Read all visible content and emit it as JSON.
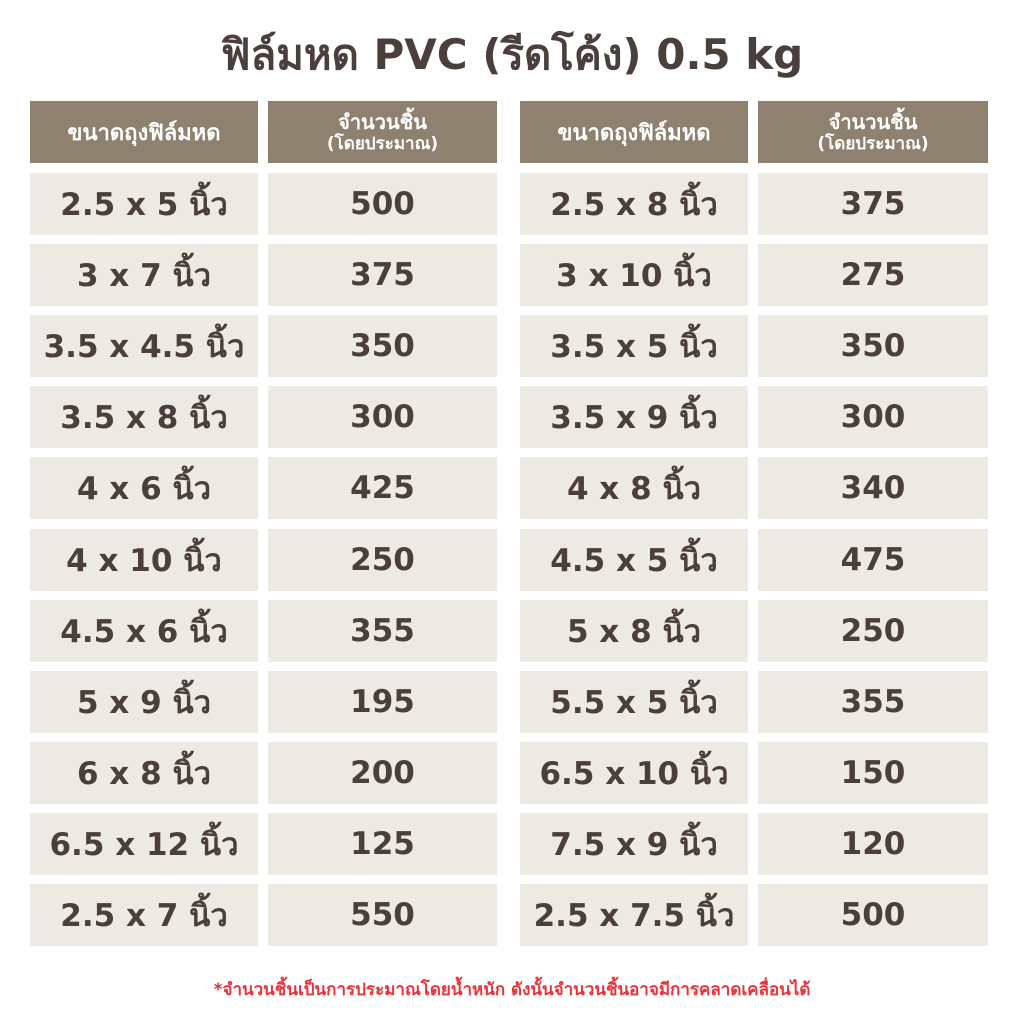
{
  "title": "ฟิล์มหด PVC (รีดโค้ง) 0.5 kg",
  "tables": [
    {
      "header": {
        "size": "ขนาดถุงฟิล์มหด",
        "count": "จำนวนชิ้น",
        "count_note": "(โดยประมาณ)"
      },
      "rows": [
        [
          "2.5 x 5 นิ้ว",
          500
        ],
        [
          "3 x 7 นิ้ว",
          375
        ],
        [
          "3.5 x 4.5 นิ้ว",
          350
        ],
        [
          "3.5 x 8 นิ้ว",
          300
        ],
        [
          "4 x 6 นิ้ว",
          425
        ],
        [
          "4 x 10 นิ้ว",
          250
        ],
        [
          "4.5 x 6 นิ้ว",
          355
        ],
        [
          "5 x 9 นิ้ว",
          195
        ],
        [
          "6 x 8 นิ้ว",
          200
        ],
        [
          "6.5 x 12 นิ้ว",
          125
        ],
        [
          "2.5 x 7 นิ้ว",
          550
        ]
      ]
    },
    {
      "header": {
        "size": "ขนาดถุงฟิล์มหด",
        "count": "จำนวนชิ้น",
        "count_note": "(โดยประมาณ)"
      },
      "rows": [
        [
          "2.5 x 8 นิ้ว",
          375
        ],
        [
          "3 x 10 นิ้ว",
          275
        ],
        [
          "3.5 x 5 นิ้ว",
          350
        ],
        [
          "3.5 x 9 นิ้ว",
          300
        ],
        [
          "4 x 8 นิ้ว",
          340
        ],
        [
          "4.5 x 5 นิ้ว",
          475
        ],
        [
          "5 x 8 นิ้ว",
          250
        ],
        [
          "5.5 x 5 นิ้ว",
          355
        ],
        [
          "6.5 x 10 นิ้ว",
          150
        ],
        [
          "7.5 x 9 นิ้ว",
          120
        ],
        [
          "2.5 x 7.5 นิ้ว",
          500
        ]
      ]
    }
  ],
  "footnote": "*จำนวนชิ้นเป็นการประมาณโดยน้ำหนัก ดังนั้นจำนวนชิ้นอาจมีการคลาดเคลื่อนได้"
}
